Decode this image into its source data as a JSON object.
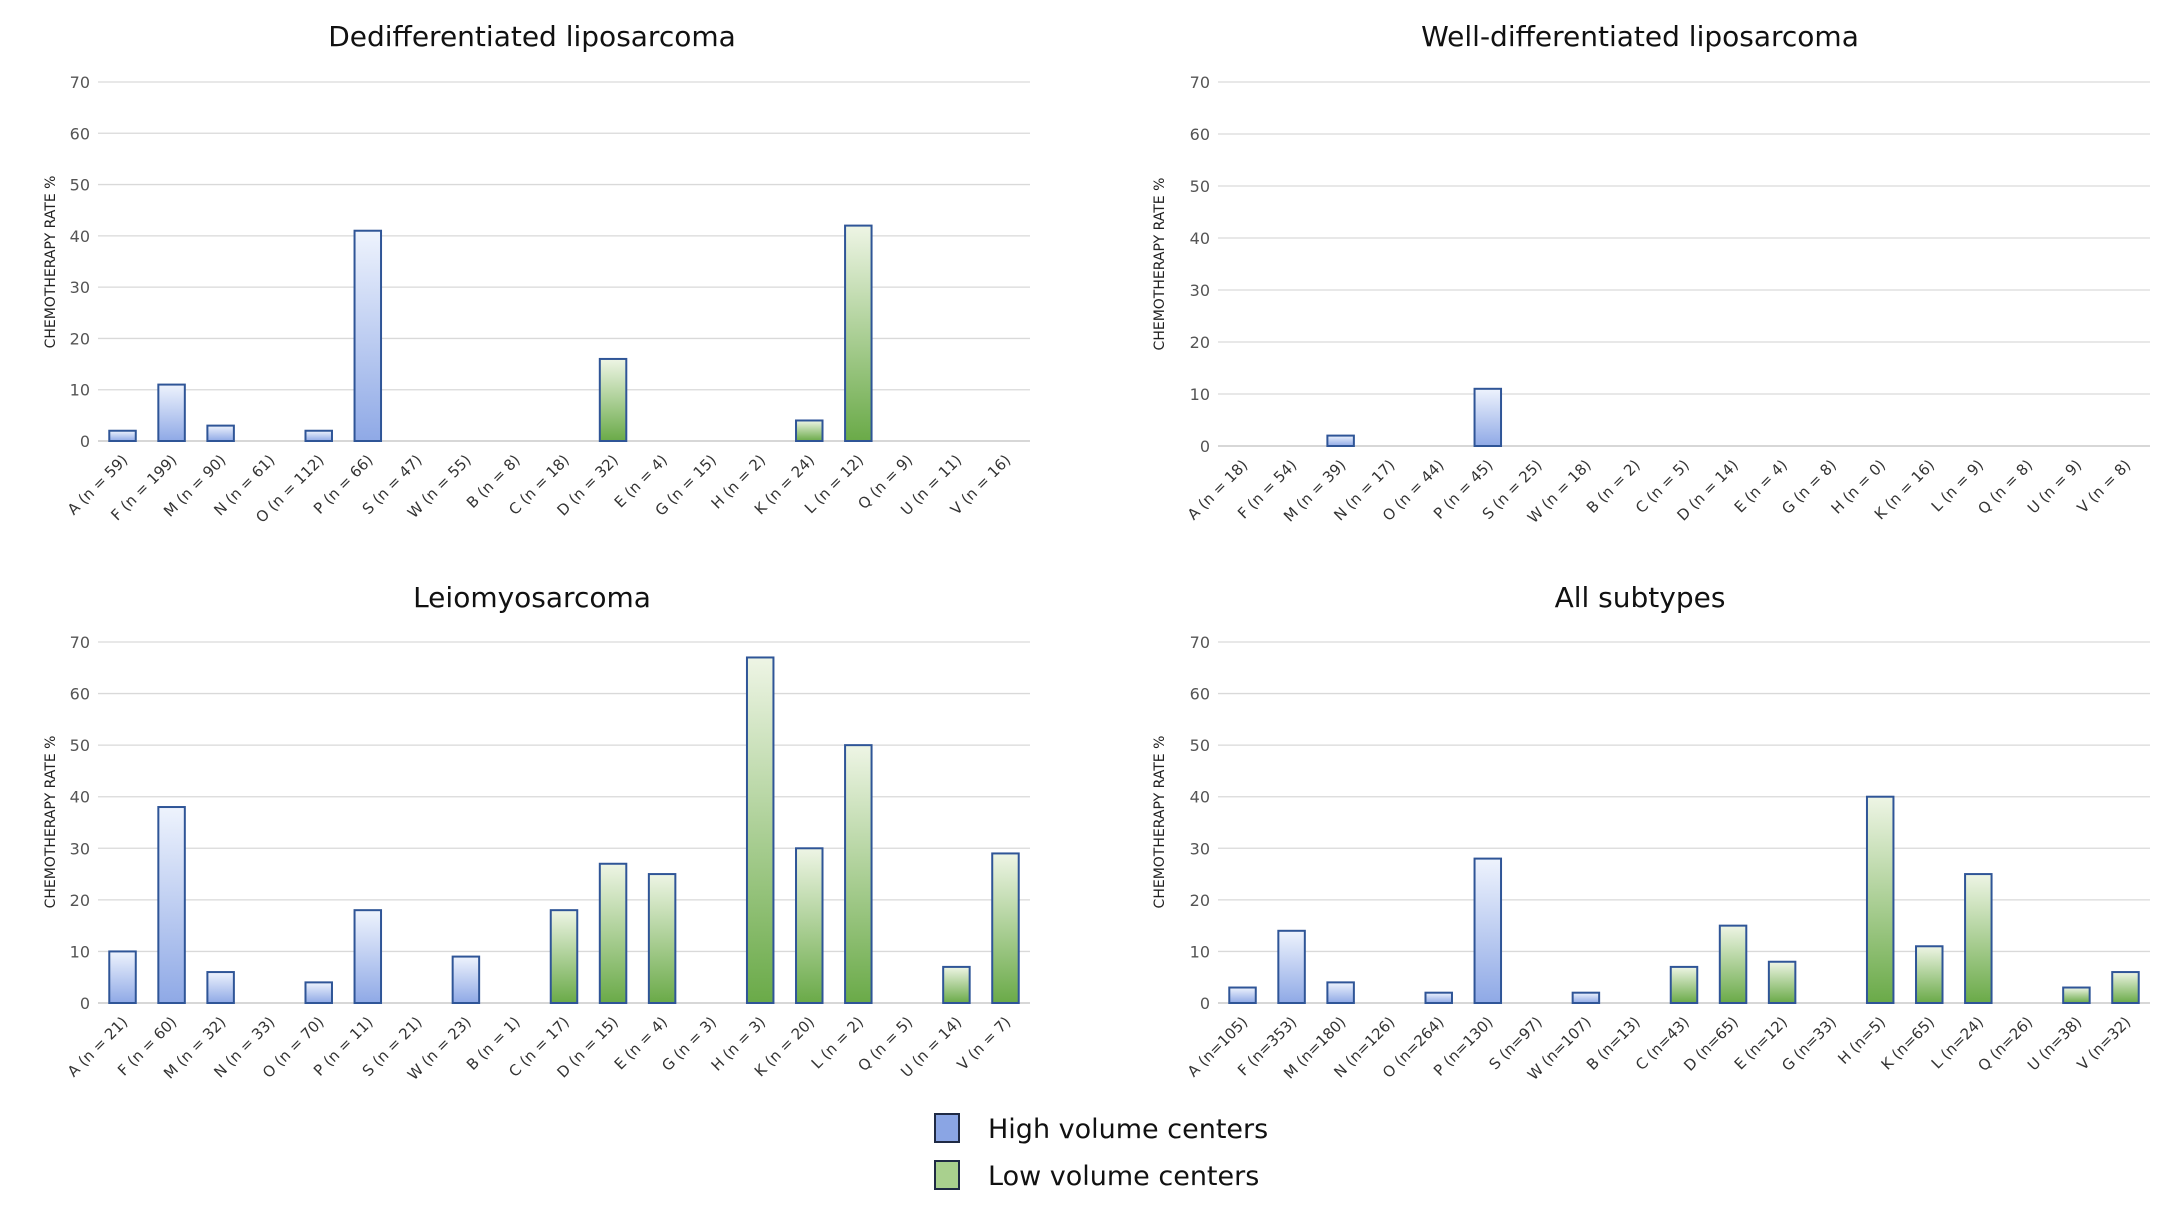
{
  "legend": {
    "items": [
      {
        "label": "High volume centers",
        "color": "#5b7fd1",
        "fill_top": "#eef3fd",
        "fill_bottom": "#8fa9e6"
      },
      {
        "label": "Low volume centers",
        "color": "#2a50a8",
        "fill_top": "#eef5e5",
        "fill_bottom": "#6aaa48"
      }
    ],
    "placement": "bottom-center"
  },
  "colors": {
    "border": "#2f5597",
    "grid": "#d9d9d9",
    "axis": "#bfbfbf"
  },
  "chart_data": [
    {
      "type": "bar",
      "title": "Dedifferentiated liposarcoma",
      "ylabel": "CHEMOTHERAPY RATE %",
      "xlabel": "",
      "ylim": [
        0,
        70
      ],
      "yticks": [
        0,
        10,
        20,
        30,
        40,
        50,
        60,
        70
      ],
      "grid": true,
      "categories": [
        "A (n = 59)",
        "F (n = 199)",
        "M (n = 90)",
        "N (n = 61)",
        "O (n = 112)",
        "P (n = 66)",
        "S (n = 47)",
        "W (n = 55)",
        "B (n = 8)",
        "C (n = 18)",
        "D (n = 32)",
        "E (n = 4)",
        "G (n = 15)",
        "H (n = 2)",
        "K (n = 24)",
        "L (n = 12)",
        "Q (n = 9)",
        "U (n = 11)",
        "V (n = 16)"
      ],
      "values": [
        2,
        11,
        3,
        0,
        2,
        41,
        0,
        0,
        0,
        0,
        16,
        0,
        0,
        0,
        4,
        42,
        0,
        0,
        0
      ],
      "groups": [
        "high",
        "high",
        "high",
        "high",
        "high",
        "high",
        "high",
        "high",
        "low",
        "low",
        "low",
        "low",
        "low",
        "low",
        "low",
        "low",
        "low",
        "low",
        "low"
      ]
    },
    {
      "type": "bar",
      "title": "Well-differentiated liposarcoma",
      "ylabel": "CHEMOTHERAPY RATE %",
      "xlabel": "",
      "ylim": [
        0,
        70
      ],
      "yticks": [
        0,
        10,
        20,
        30,
        40,
        50,
        60,
        70
      ],
      "grid": true,
      "categories": [
        "A (n = 18)",
        "F (n = 54)",
        "M (n = 39)",
        "N (n = 17)",
        "O (n = 44)",
        "P (n = 45)",
        "S (n = 25)",
        "W (n = 18)",
        "B (n = 2)",
        "C (n = 5)",
        "D (n = 14)",
        "E (n = 4)",
        "G (n = 8)",
        "H (n = 0)",
        "K (n = 16)",
        "L (n = 9)",
        "Q (n = 8)",
        "U (n = 9)",
        "V (n = 8)"
      ],
      "values": [
        0,
        0,
        2,
        0,
        0,
        11,
        0,
        0,
        0,
        0,
        0,
        0,
        0,
        0,
        0,
        0,
        0,
        0,
        0
      ],
      "groups": [
        "high",
        "high",
        "high",
        "high",
        "high",
        "high",
        "high",
        "high",
        "low",
        "low",
        "low",
        "low",
        "low",
        "low",
        "low",
        "low",
        "low",
        "low",
        "low"
      ]
    },
    {
      "type": "bar",
      "title": "Leiomyosarcoma",
      "ylabel": "CHEMOTHERAPY RATE %",
      "xlabel": "",
      "ylim": [
        0,
        70
      ],
      "yticks": [
        0,
        10,
        20,
        30,
        40,
        50,
        60,
        70
      ],
      "grid": true,
      "categories": [
        "A (n = 21)",
        "F (n = 60)",
        "M (n = 32)",
        "N (n = 33)",
        "O (n = 70)",
        "P (n = 11)",
        "S (n = 21)",
        "W (n = 23)",
        "B (n = 1)",
        "C (n = 17)",
        "D (n = 15)",
        "E (n = 4)",
        "G (n = 3)",
        "H (n = 3)",
        "K (n = 20)",
        "L (n = 2)",
        "Q (n = 5)",
        "U (n = 14)",
        "V (n = 7)"
      ],
      "values": [
        10,
        38,
        6,
        0,
        4,
        18,
        0,
        9,
        0,
        18,
        27,
        25,
        0,
        67,
        30,
        50,
        0,
        7,
        29
      ],
      "groups": [
        "high",
        "high",
        "high",
        "high",
        "high",
        "high",
        "high",
        "high",
        "low",
        "low",
        "low",
        "low",
        "low",
        "low",
        "low",
        "low",
        "low",
        "low",
        "low"
      ]
    },
    {
      "type": "bar",
      "title": "All subtypes",
      "ylabel": "CHEMOTHERAPY RATE %",
      "xlabel": "",
      "ylim": [
        0,
        70
      ],
      "yticks": [
        0,
        10,
        20,
        30,
        40,
        50,
        60,
        70
      ],
      "grid": true,
      "categories": [
        "A (n=105)",
        "F (n=353)",
        "M (n=180)",
        "N (n=126)",
        "O (n=264)",
        "P (n=130)",
        "S (n=97)",
        "W (n=107)",
        "B (n=13)",
        "C (n=43)",
        "D (n=65)",
        "E (n=12)",
        "G (n=33)",
        "H (n=5)",
        "K (n=65)",
        "L (n=24)",
        "Q (n=26)",
        "U (n=38)",
        "V (n=32)"
      ],
      "values": [
        3,
        14,
        4,
        0,
        2,
        28,
        0,
        2,
        0,
        7,
        15,
        8,
        0,
        40,
        11,
        25,
        0,
        3,
        6
      ],
      "groups": [
        "high",
        "high",
        "high",
        "high",
        "high",
        "high",
        "high",
        "high",
        "low",
        "low",
        "low",
        "low",
        "low",
        "low",
        "low",
        "low",
        "low",
        "low",
        "low"
      ]
    }
  ]
}
